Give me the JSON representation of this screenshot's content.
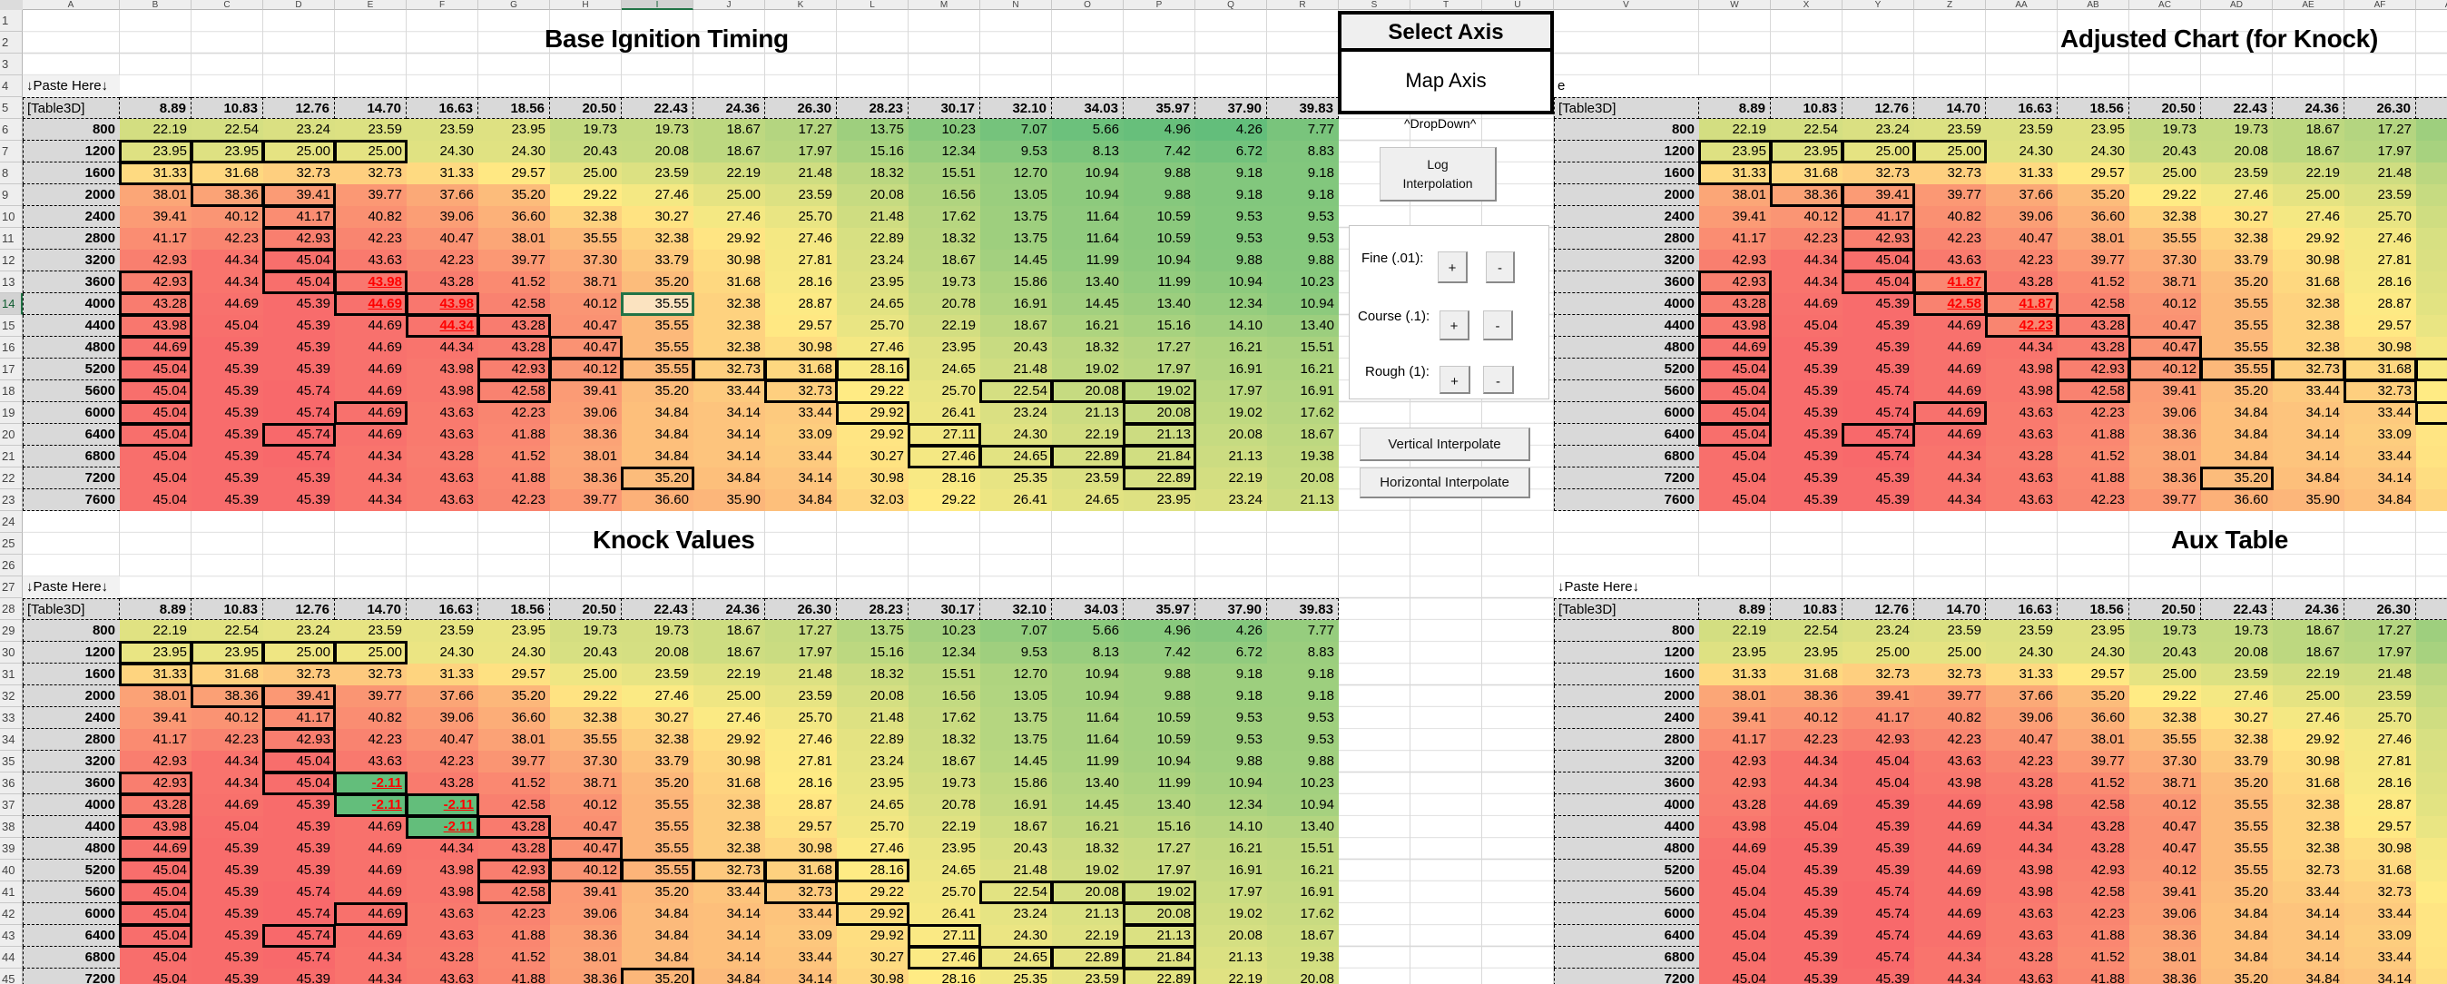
{
  "sheet": {
    "column_letters_left": [
      "A",
      "B",
      "C",
      "D",
      "E",
      "F",
      "G",
      "H",
      "I",
      "J",
      "K",
      "L",
      "M",
      "N",
      "O",
      "P",
      "Q",
      "R"
    ],
    "column_letters_mid": [
      "S",
      "T",
      "U"
    ],
    "column_letters_right": [
      "V",
      "W",
      "X",
      "Y",
      "Z",
      "AA",
      "AB",
      "AC",
      "AD",
      "AE",
      "AF",
      "AG"
    ],
    "row_numbers": [
      1,
      2,
      3,
      4,
      5,
      6,
      7,
      8,
      9,
      10,
      11,
      12,
      13,
      14,
      15,
      16,
      17,
      18,
      19,
      20,
      21,
      22,
      23,
      24,
      25,
      26,
      27,
      28,
      29,
      30,
      31,
      32,
      33,
      34,
      35,
      36,
      37,
      38,
      39,
      40,
      41,
      42,
      43,
      44,
      45
    ],
    "selected_column": "I",
    "selected_row": 14
  },
  "axis": {
    "x": [
      "8.89",
      "10.83",
      "12.76",
      "14.70",
      "16.63",
      "18.56",
      "20.50",
      "22.43",
      "24.36",
      "26.30",
      "28.23",
      "30.17",
      "32.10",
      "34.03",
      "35.97",
      "37.90",
      "39.83"
    ],
    "y": [
      "800",
      "1200",
      "1600",
      "2000",
      "2400",
      "2800",
      "3200",
      "3600",
      "4000",
      "4400",
      "4800",
      "5200",
      "5600",
      "6000",
      "6400",
      "6800",
      "7200",
      "7600"
    ]
  },
  "base_values": [
    [
      "22.19",
      "22.54",
      "23.24",
      "23.59",
      "23.59",
      "23.95",
      "19.73",
      "19.73",
      "18.67",
      "17.27",
      "13.75",
      "10.23",
      "7.07",
      "5.66",
      "4.96",
      "4.26",
      "7.77"
    ],
    [
      "23.95",
      "23.95",
      "25.00",
      "25.00",
      "24.30",
      "24.30",
      "20.43",
      "20.08",
      "18.67",
      "17.97",
      "15.16",
      "12.34",
      "9.53",
      "8.13",
      "7.42",
      "6.72",
      "8.83"
    ],
    [
      "31.33",
      "31.68",
      "32.73",
      "32.73",
      "31.33",
      "29.57",
      "25.00",
      "23.59",
      "22.19",
      "21.48",
      "18.32",
      "15.51",
      "12.70",
      "10.94",
      "9.88",
      "9.18",
      "9.18"
    ],
    [
      "38.01",
      "38.36",
      "39.41",
      "39.77",
      "37.66",
      "35.20",
      "29.22",
      "27.46",
      "25.00",
      "23.59",
      "20.08",
      "16.56",
      "13.05",
      "10.94",
      "9.88",
      "9.18",
      "9.18"
    ],
    [
      "39.41",
      "40.12",
      "41.17",
      "40.82",
      "39.06",
      "36.60",
      "32.38",
      "30.27",
      "27.46",
      "25.70",
      "21.48",
      "17.62",
      "13.75",
      "11.64",
      "10.59",
      "9.53",
      "9.53"
    ],
    [
      "41.17",
      "42.23",
      "42.93",
      "42.23",
      "40.47",
      "38.01",
      "35.55",
      "32.38",
      "29.92",
      "27.46",
      "22.89",
      "18.32",
      "13.75",
      "11.64",
      "10.59",
      "9.53",
      "9.53"
    ],
    [
      "42.93",
      "44.34",
      "45.04",
      "43.63",
      "42.23",
      "39.77",
      "37.30",
      "33.79",
      "30.98",
      "27.81",
      "23.24",
      "18.67",
      "14.45",
      "11.99",
      "10.94",
      "9.88",
      "9.88"
    ],
    [
      "42.93",
      "44.34",
      "45.04",
      "43.98",
      "43.28",
      "41.52",
      "38.71",
      "35.20",
      "31.68",
      "28.16",
      "23.95",
      "19.73",
      "15.86",
      "13.40",
      "11.99",
      "10.94",
      "10.23"
    ],
    [
      "43.28",
      "44.69",
      "45.39",
      "44.69",
      "43.98",
      "42.58",
      "40.12",
      "35.55",
      "32.38",
      "28.87",
      "24.65",
      "20.78",
      "16.91",
      "14.45",
      "13.40",
      "12.34",
      "10.94"
    ],
    [
      "43.98",
      "45.04",
      "45.39",
      "44.69",
      "44.34",
      "43.28",
      "40.47",
      "35.55",
      "32.38",
      "29.57",
      "25.70",
      "22.19",
      "18.67",
      "16.21",
      "15.16",
      "14.10",
      "13.40"
    ],
    [
      "44.69",
      "45.39",
      "45.39",
      "44.69",
      "44.34",
      "43.28",
      "40.47",
      "35.55",
      "32.38",
      "30.98",
      "27.46",
      "23.95",
      "20.43",
      "18.32",
      "17.27",
      "16.21",
      "15.51"
    ],
    [
      "45.04",
      "45.39",
      "45.39",
      "44.69",
      "43.98",
      "42.93",
      "40.12",
      "35.55",
      "32.73",
      "31.68",
      "28.16",
      "24.65",
      "21.48",
      "19.02",
      "17.97",
      "16.91",
      "16.21"
    ],
    [
      "45.04",
      "45.39",
      "45.74",
      "44.69",
      "43.98",
      "42.58",
      "39.41",
      "35.20",
      "33.44",
      "32.73",
      "29.22",
      "25.70",
      "22.54",
      "20.08",
      "19.02",
      "17.97",
      "16.91"
    ],
    [
      "45.04",
      "45.39",
      "45.74",
      "44.69",
      "43.63",
      "42.23",
      "39.06",
      "34.84",
      "34.14",
      "33.44",
      "29.92",
      "26.41",
      "23.24",
      "21.13",
      "20.08",
      "19.02",
      "17.62"
    ],
    [
      "45.04",
      "45.39",
      "45.74",
      "44.69",
      "43.63",
      "41.88",
      "38.36",
      "34.84",
      "34.14",
      "33.09",
      "29.92",
      "27.11",
      "24.30",
      "22.19",
      "21.13",
      "20.08",
      "18.67"
    ],
    [
      "45.04",
      "45.39",
      "45.74",
      "44.34",
      "43.28",
      "41.52",
      "38.01",
      "34.84",
      "34.14",
      "33.44",
      "30.27",
      "27.46",
      "24.65",
      "22.89",
      "21.84",
      "21.13",
      "19.38"
    ],
    [
      "45.04",
      "45.39",
      "45.39",
      "44.34",
      "43.63",
      "41.88",
      "38.36",
      "35.20",
      "34.84",
      "34.14",
      "30.98",
      "28.16",
      "25.35",
      "23.59",
      "22.89",
      "22.19",
      "20.08"
    ],
    [
      "45.04",
      "45.39",
      "45.39",
      "44.34",
      "43.63",
      "42.23",
      "39.77",
      "36.60",
      "35.90",
      "34.84",
      "32.03",
      "29.22",
      "26.41",
      "24.65",
      "23.95",
      "23.24",
      "21.13"
    ]
  ],
  "tables": {
    "base": {
      "title": "Base Ignition Timing",
      "paste_label": "↓Paste Here↓",
      "corner_label": "[Table3D]",
      "overrides": []
    },
    "knock": {
      "title": "Knock Values",
      "paste_label": "↓Paste Here↓",
      "corner_label": "[Table3D]",
      "overrides": [
        {
          "row": 7,
          "col": 3,
          "value": "-2.11"
        },
        {
          "row": 8,
          "col": 3,
          "value": "-2.11"
        },
        {
          "row": 8,
          "col": 4,
          "value": "-2.11"
        },
        {
          "row": 9,
          "col": 4,
          "value": "-2.11"
        }
      ]
    },
    "adjusted": {
      "title": "Adjusted Chart (for Knock)",
      "paste_label": "e",
      "corner_label": "[Table3D]",
      "overrides": [
        {
          "row": 7,
          "col": 3,
          "value": "41.87"
        },
        {
          "row": 8,
          "col": 3,
          "value": "42.58"
        },
        {
          "row": 8,
          "col": 4,
          "value": "41.87"
        },
        {
          "row": 9,
          "col": 4,
          "value": "42.23"
        }
      ]
    },
    "aux": {
      "title": "Aux Table",
      "paste_label": "↓Paste Here↓",
      "corner_label": "[Table3D]",
      "overrides": []
    }
  },
  "highlighted_cells": [
    [
      7,
      3
    ],
    [
      8,
      3
    ],
    [
      8,
      4
    ],
    [
      9,
      4
    ]
  ],
  "boxed_cells": [
    [
      1,
      0
    ],
    [
      1,
      1
    ],
    [
      1,
      2
    ],
    [
      1,
      3
    ],
    [
      2,
      0
    ],
    [
      3,
      1
    ],
    [
      3,
      2
    ],
    [
      4,
      2
    ],
    [
      5,
      2
    ],
    [
      6,
      2
    ],
    [
      7,
      2
    ],
    [
      7,
      0
    ],
    [
      8,
      0
    ],
    [
      9,
      0
    ],
    [
      10,
      0
    ],
    [
      11,
      0
    ],
    [
      12,
      0
    ],
    [
      13,
      0
    ],
    [
      14,
      0
    ],
    [
      7,
      3
    ],
    [
      8,
      3
    ],
    [
      8,
      4
    ],
    [
      9,
      4
    ],
    [
      9,
      5
    ],
    [
      11,
      5
    ],
    [
      12,
      5
    ],
    [
      10,
      6
    ],
    [
      11,
      6
    ],
    [
      11,
      7
    ],
    [
      11,
      8
    ],
    [
      11,
      9
    ],
    [
      11,
      10
    ],
    [
      12,
      9
    ],
    [
      12,
      12
    ],
    [
      12,
      13
    ],
    [
      12,
      14
    ],
    [
      13,
      3
    ],
    [
      13,
      10
    ],
    [
      13,
      14
    ],
    [
      14,
      2
    ],
    [
      14,
      11
    ],
    [
      14,
      14
    ],
    [
      15,
      11
    ],
    [
      15,
      12
    ],
    [
      15,
      13
    ],
    [
      15,
      14
    ],
    [
      16,
      7
    ],
    [
      16,
      14
    ]
  ],
  "selected_cell": {
    "row": 8,
    "col": 7
  },
  "controls": {
    "select_axis_label": "Select Axis",
    "axis_dropdown_value": "Map Axis",
    "dropdown_hint": "^DropDown^",
    "log_interp_line1": "Log",
    "log_interp_line2": "Interpolation",
    "fine_label": "Fine (.01):",
    "course_label": "Course (.1):",
    "rough_label": "Rough (1):",
    "plus": "+",
    "minus": "-",
    "vertical_interpolate": "Vertical Interpolate",
    "horizontal_interpolate": "Horizontal Interpolate"
  },
  "colors": {
    "scale_min": "#63BE7B",
    "scale_mid": "#FFEB84",
    "scale_max": "#F8696B",
    "selection": "#217346",
    "alert_text": "#FF0000"
  }
}
